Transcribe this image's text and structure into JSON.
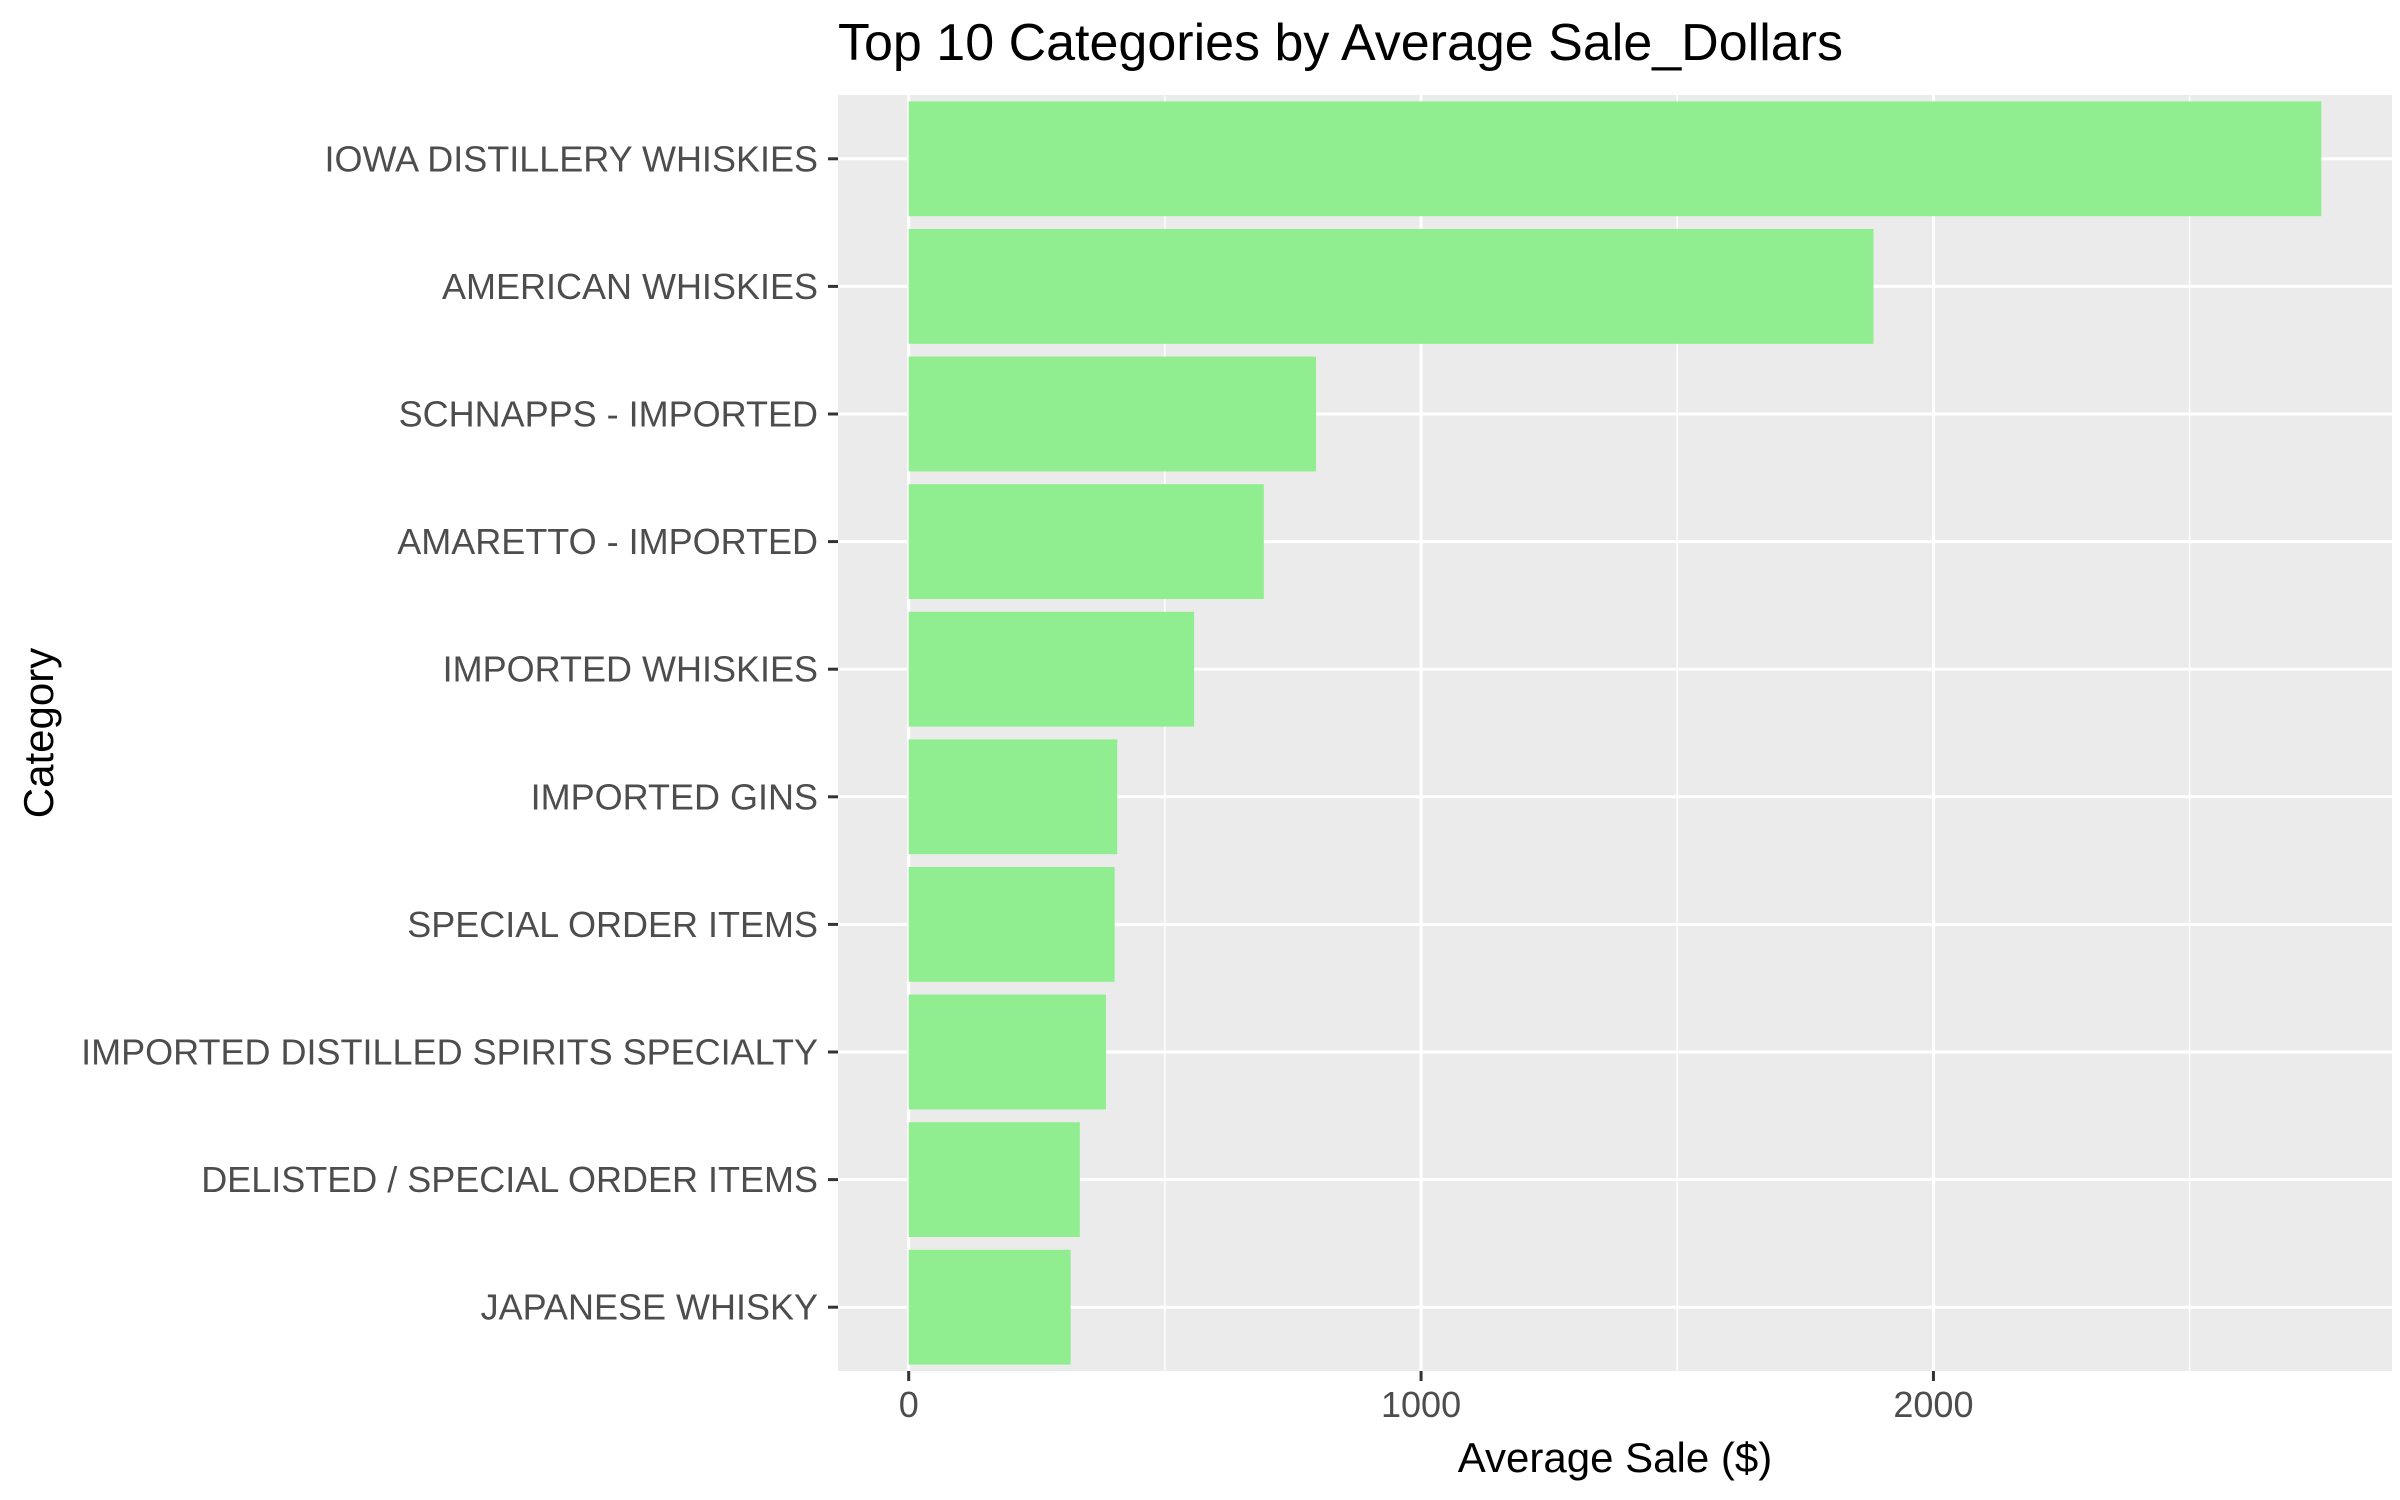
{
  "chart_data": {
    "type": "bar",
    "orientation": "horizontal",
    "title": "Top 10 Categories by Average Sale_Dollars",
    "xlabel": "Average Sale ($)",
    "ylabel": "Category",
    "categories": [
      "IOWA DISTILLERY WHISKIES",
      "AMERICAN WHISKIES",
      "SCHNAPPS - IMPORTED",
      "AMARETTO - IMPORTED",
      "IMPORTED WHISKIES",
      "IMPORTED GINS",
      "SPECIAL ORDER ITEMS",
      "IMPORTED DISTILLED SPIRITS SPECIALTY",
      "DELISTED / SPECIAL ORDER ITEMS",
      "JAPANESE WHISKY"
    ],
    "values": [
      2757,
      1883,
      795,
      693,
      557,
      407,
      402,
      385,
      334,
      316
    ],
    "xlim": [
      -138,
      2895
    ],
    "xticks": [
      0,
      1000,
      2000
    ],
    "xtick_labels": [
      "0",
      "1000",
      "2000"
    ],
    "grid": true,
    "legend": "none",
    "colors": {
      "bar": "#90EE90",
      "panel": "#EBEBEB",
      "grid": "#FFFFFF",
      "tick_text": "#4D4D4D",
      "tick_mark": "#333333"
    }
  }
}
